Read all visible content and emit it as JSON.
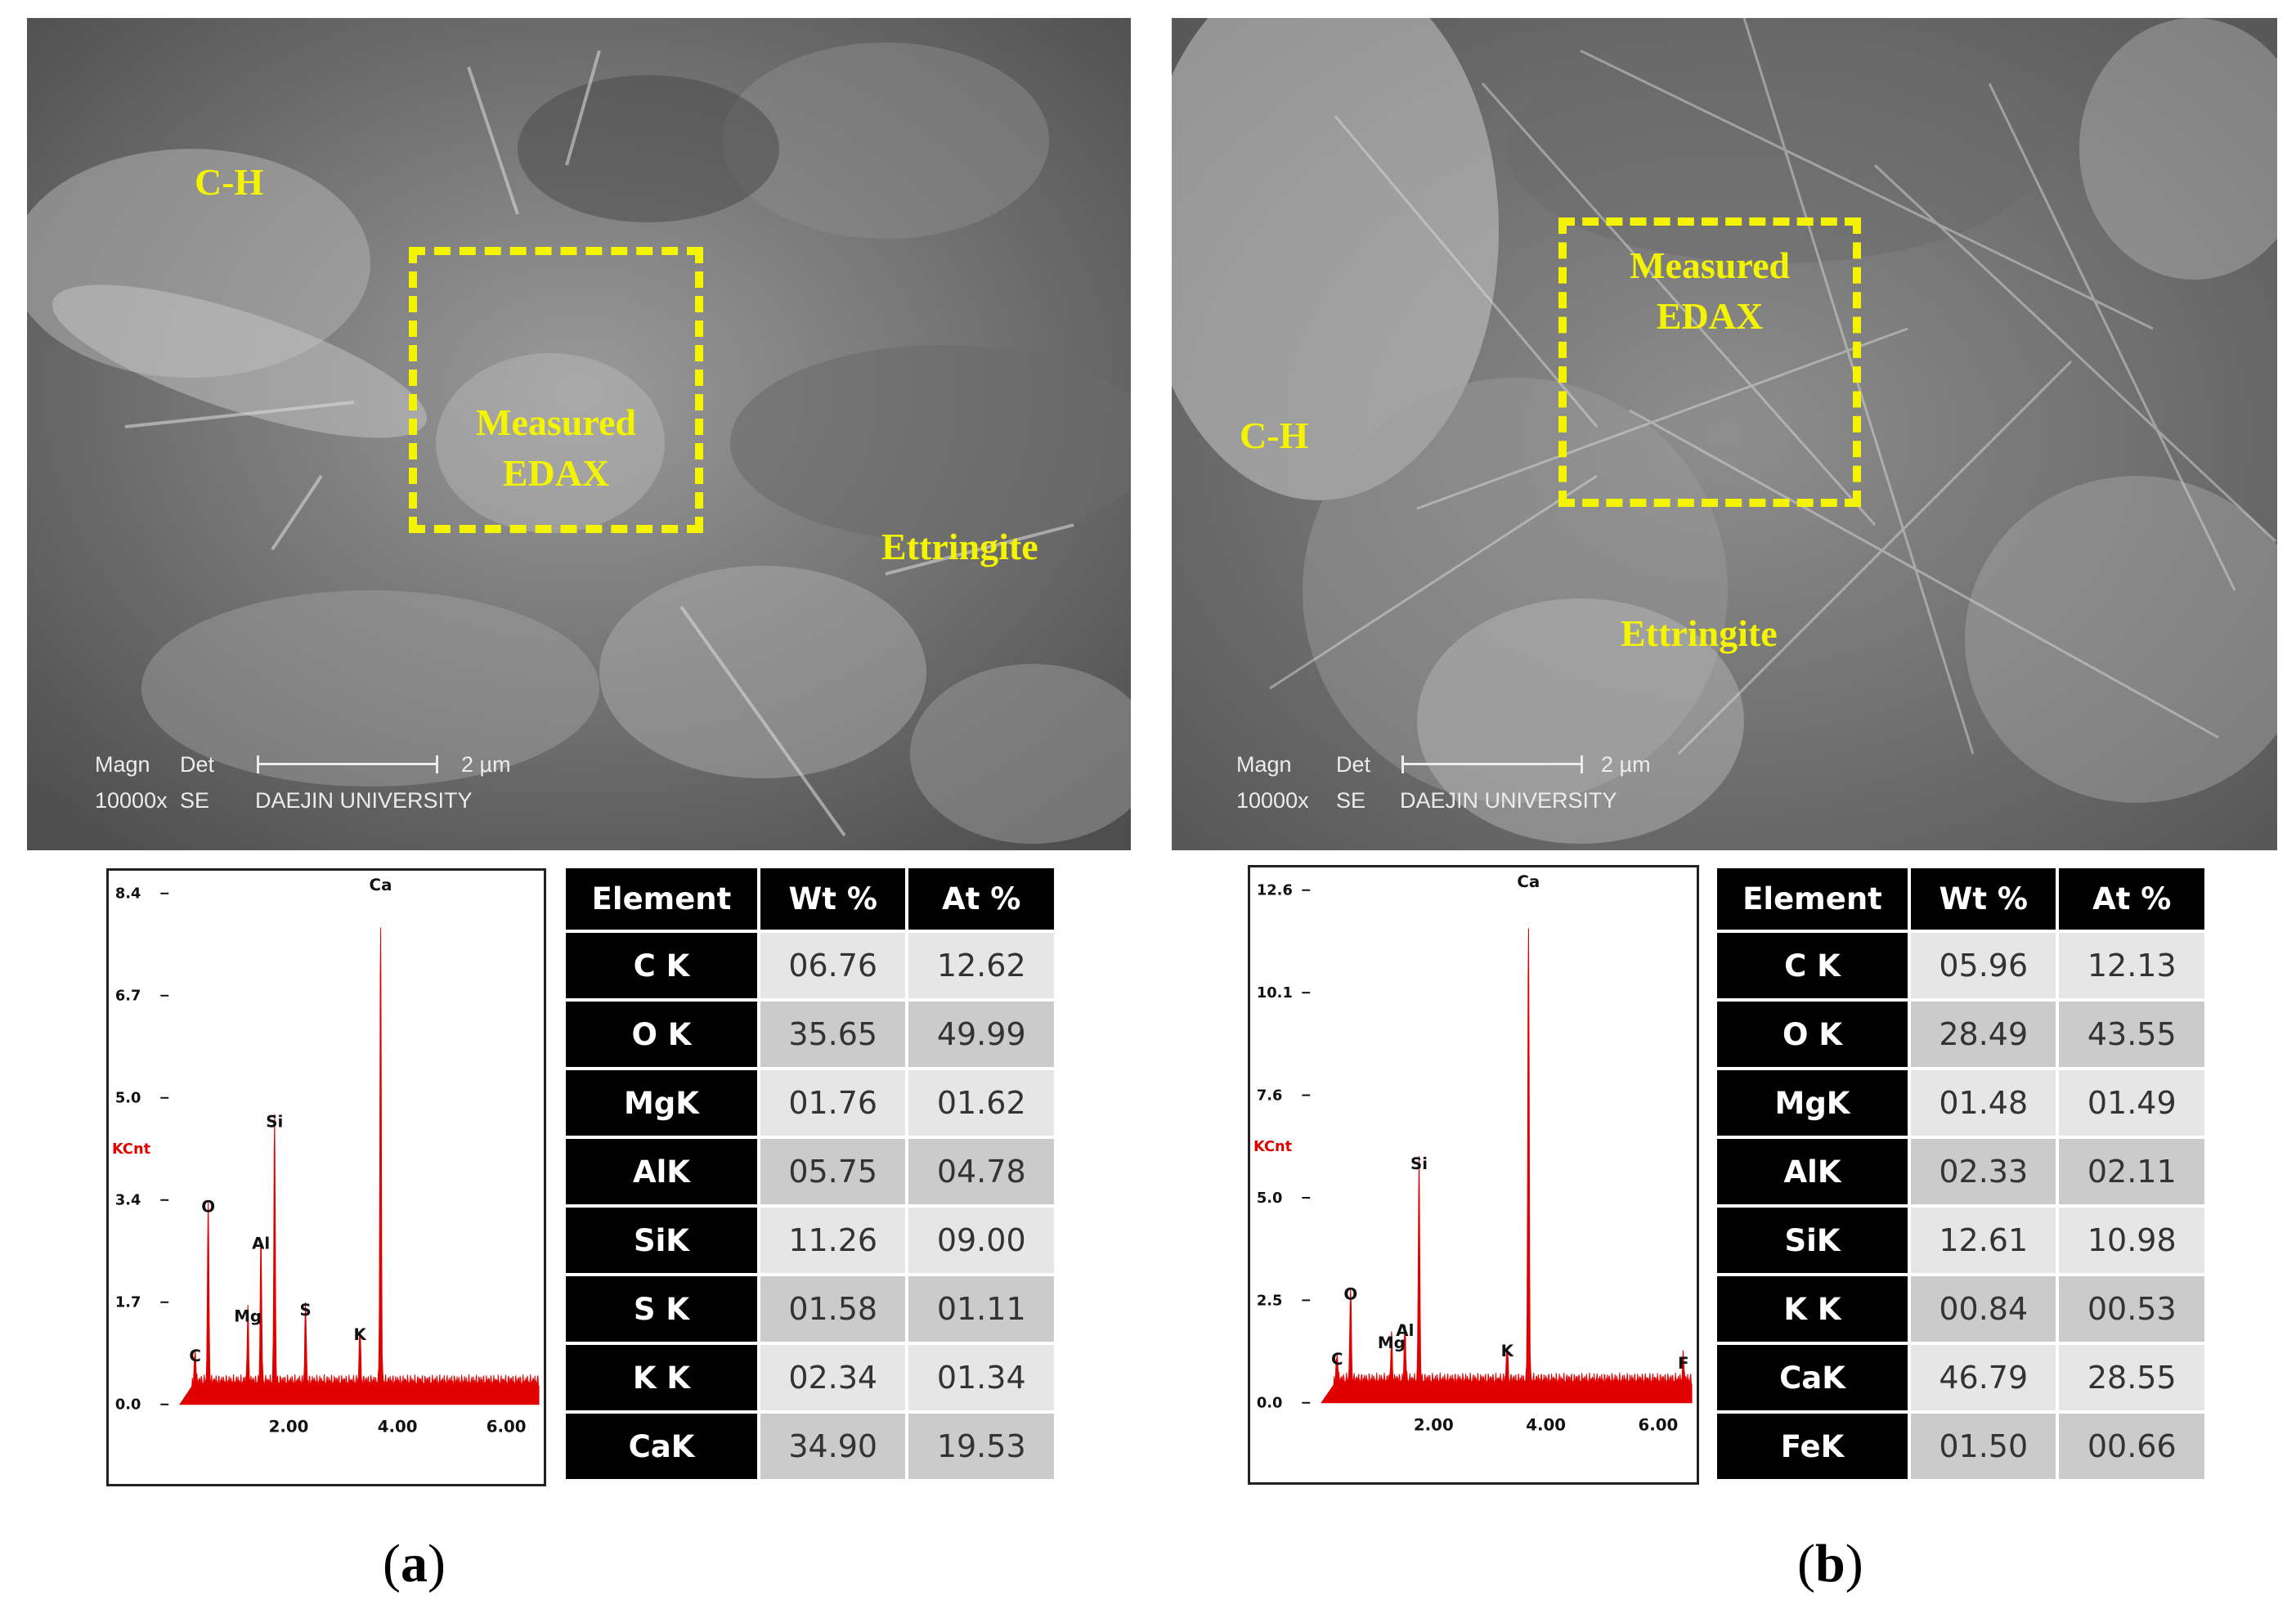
{
  "panels": [
    {
      "id": "a",
      "label_open": "(",
      "label_letter": "a",
      "label_close": ")",
      "sem": {
        "labels": {
          "ch": "C-H",
          "ettringite": "Ettringite"
        },
        "edax_line1": "Measured",
        "edax_line2": "EDAX",
        "meta": {
          "magn_header": "Magn",
          "det_header": "Det",
          "magn_value": "10000x",
          "det_value": "SE",
          "institution": "DAEJIN UNIVERSITY",
          "scale_text": "2 µm"
        }
      },
      "spectrum": {
        "y_unit": "KCnt",
        "y_ticks": [
          "8.4",
          "6.7",
          "5.0",
          "3.4",
          "1.7",
          "0.0"
        ],
        "y_max": 8.4,
        "x_ticks": [
          "2.00",
          "4.00",
          "6.00"
        ],
        "x_range": [
          0,
          6.6
        ],
        "peaks": [
          {
            "name": "C",
            "x": 0.28,
            "y": 0.55
          },
          {
            "name": "O",
            "x": 0.52,
            "y": 3.0
          },
          {
            "name": "Mg",
            "x": 1.25,
            "y": 1.2
          },
          {
            "name": "Al",
            "x": 1.49,
            "y": 2.4
          },
          {
            "name": "Si",
            "x": 1.74,
            "y": 4.4
          },
          {
            "name": "S",
            "x": 2.31,
            "y": 1.3
          },
          {
            "name": "K",
            "x": 3.31,
            "y": 0.9
          },
          {
            "name": "Ca",
            "x": 3.69,
            "y": 7.6
          }
        ]
      },
      "table": {
        "headers": [
          "Element",
          "Wt %",
          "At %"
        ],
        "rows": [
          [
            "C K",
            "06.76",
            "12.62"
          ],
          [
            "O K",
            "35.65",
            "49.99"
          ],
          [
            "MgK",
            "01.76",
            "01.62"
          ],
          [
            "AlK",
            "05.75",
            "04.78"
          ],
          [
            "SiK",
            "11.26",
            "09.00"
          ],
          [
            "S K",
            "01.58",
            "01.11"
          ],
          [
            "K K",
            "02.34",
            "01.34"
          ],
          [
            "CaK",
            "34.90",
            "19.53"
          ]
        ]
      }
    },
    {
      "id": "b",
      "label_open": "(",
      "label_letter": "b",
      "label_close": ")",
      "sem": {
        "labels": {
          "ch": "C-H",
          "ettringite": "Ettringite"
        },
        "edax_line1": "Measured",
        "edax_line2": "EDAX",
        "meta": {
          "magn_header": "Magn",
          "det_header": "Det",
          "magn_value": "10000x",
          "det_value": "SE",
          "institution": "DAEJIN UNIVERSITY",
          "scale_text": "2 µm"
        }
      },
      "spectrum": {
        "y_unit": "KCnt",
        "y_ticks": [
          "12.6",
          "10.1",
          "7.6",
          "5.0",
          "2.5",
          "0.0"
        ],
        "y_max": 12.6,
        "x_ticks": [
          "2.00",
          "4.00",
          "6.00"
        ],
        "x_range": [
          0,
          6.6
        ],
        "peaks": [
          {
            "name": "C",
            "x": 0.28,
            "y": 0.7
          },
          {
            "name": "O",
            "x": 0.52,
            "y": 2.3
          },
          {
            "name": "Mg",
            "x": 1.25,
            "y": 1.1
          },
          {
            "name": "Al",
            "x": 1.49,
            "y": 1.4
          },
          {
            "name": "Si",
            "x": 1.74,
            "y": 5.5
          },
          {
            "name": "K",
            "x": 3.31,
            "y": 0.9
          },
          {
            "name": "Ca",
            "x": 3.69,
            "y": 11.3
          },
          {
            "name": "F",
            "x": 6.45,
            "y": 0.6
          }
        ]
      },
      "table": {
        "headers": [
          "Element",
          "Wt %",
          "At %"
        ],
        "rows": [
          [
            "C K",
            "05.96",
            "12.13"
          ],
          [
            "O K",
            "28.49",
            "43.55"
          ],
          [
            "MgK",
            "01.48",
            "01.49"
          ],
          [
            "AlK",
            "02.33",
            "02.11"
          ],
          [
            "SiK",
            "12.61",
            "10.98"
          ],
          [
            "K K",
            "00.84",
            "00.53"
          ],
          [
            "CaK",
            "46.79",
            "28.55"
          ],
          [
            "FeK",
            "01.50",
            "00.66"
          ]
        ]
      }
    }
  ]
}
